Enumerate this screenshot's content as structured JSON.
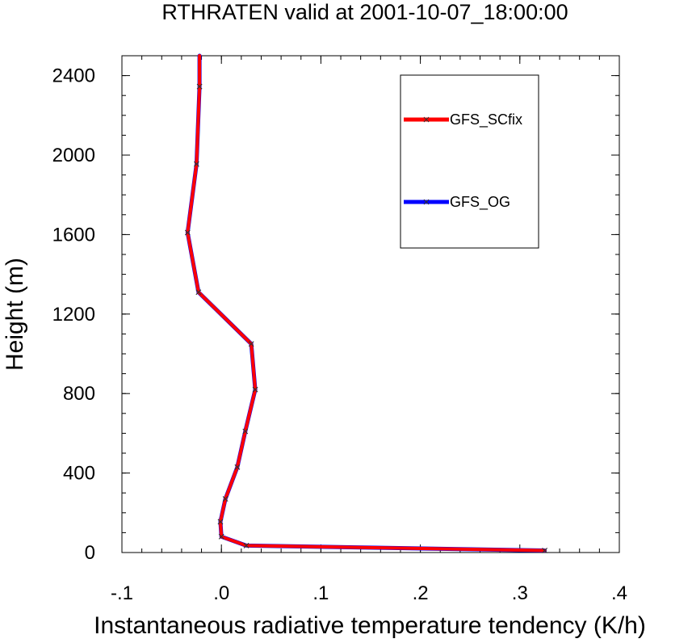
{
  "chart_data": {
    "type": "line",
    "title": "RTHRATEN valid at 2001-10-07_18:00:00",
    "xlabel": "Instantaneous radiative temperature tendency (K/h)",
    "ylabel": "Height (m)",
    "xlim": [
      -0.1,
      0.4
    ],
    "ylim": [
      0,
      2500
    ],
    "x_ticks": [
      -0.1,
      0.0,
      0.1,
      0.2,
      0.3,
      0.4
    ],
    "x_tick_labels": [
      "-.1",
      ".0",
      ".1",
      ".2",
      ".3",
      ".4"
    ],
    "y_ticks": [
      0,
      400,
      800,
      1200,
      1600,
      2000,
      2400
    ],
    "y_tick_labels": [
      "0",
      "400",
      "800",
      "1200",
      "1600",
      "2000",
      "2400"
    ],
    "grid": false,
    "legend_position": "top-right",
    "series": [
      {
        "name": "GFS_SCfix",
        "color": "#ff0000",
        "marker": "x",
        "points": [
          {
            "x": 0.325,
            "y": 10
          },
          {
            "x": 0.025,
            "y": 35
          },
          {
            "x": 0.0,
            "y": 80
          },
          {
            "x": -0.001,
            "y": 155
          },
          {
            "x": 0.004,
            "y": 270
          },
          {
            "x": 0.016,
            "y": 430
          },
          {
            "x": 0.024,
            "y": 610
          },
          {
            "x": 0.034,
            "y": 820
          },
          {
            "x": 0.03,
            "y": 1050
          },
          {
            "x": -0.023,
            "y": 1310
          },
          {
            "x": -0.034,
            "y": 1610
          },
          {
            "x": -0.025,
            "y": 1955
          },
          {
            "x": -0.022,
            "y": 2345
          },
          {
            "x": -0.022,
            "y": 2500
          }
        ]
      },
      {
        "name": "GFS_OG",
        "color": "#0000ff",
        "marker": "x",
        "points": [
          {
            "x": 0.325,
            "y": 10
          },
          {
            "x": 0.025,
            "y": 35
          },
          {
            "x": 0.0,
            "y": 80
          },
          {
            "x": -0.001,
            "y": 155
          },
          {
            "x": 0.004,
            "y": 270
          },
          {
            "x": 0.016,
            "y": 430
          },
          {
            "x": 0.024,
            "y": 610
          },
          {
            "x": 0.034,
            "y": 820
          },
          {
            "x": 0.03,
            "y": 1050
          },
          {
            "x": -0.023,
            "y": 1310
          },
          {
            "x": -0.034,
            "y": 1610
          },
          {
            "x": -0.025,
            "y": 1955
          },
          {
            "x": -0.022,
            "y": 2345
          },
          {
            "x": -0.022,
            "y": 2500
          }
        ]
      }
    ]
  }
}
